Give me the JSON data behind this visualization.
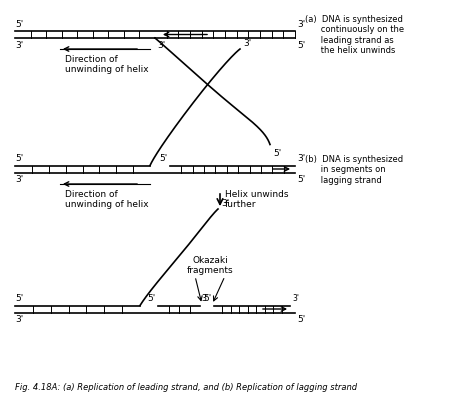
{
  "bg_color": "#ffffff",
  "fig_title": "Fig. 4.18A: (a) Replication of leading strand, and (b) Replication of lagging strand",
  "annotation_a": "(a)  DNA is synthesized\n      continuously on the\n      leading strand as\n      the helix unwinds",
  "annotation_b": "(b)  DNA is synthesized\n      in segments on\n      lagging strand",
  "direction_label": "Direction of\nunwinding of helix",
  "helix_unwinds_label": "Helix unwinds\nfurther",
  "okazaki_label": "Okazaki\nfragments"
}
